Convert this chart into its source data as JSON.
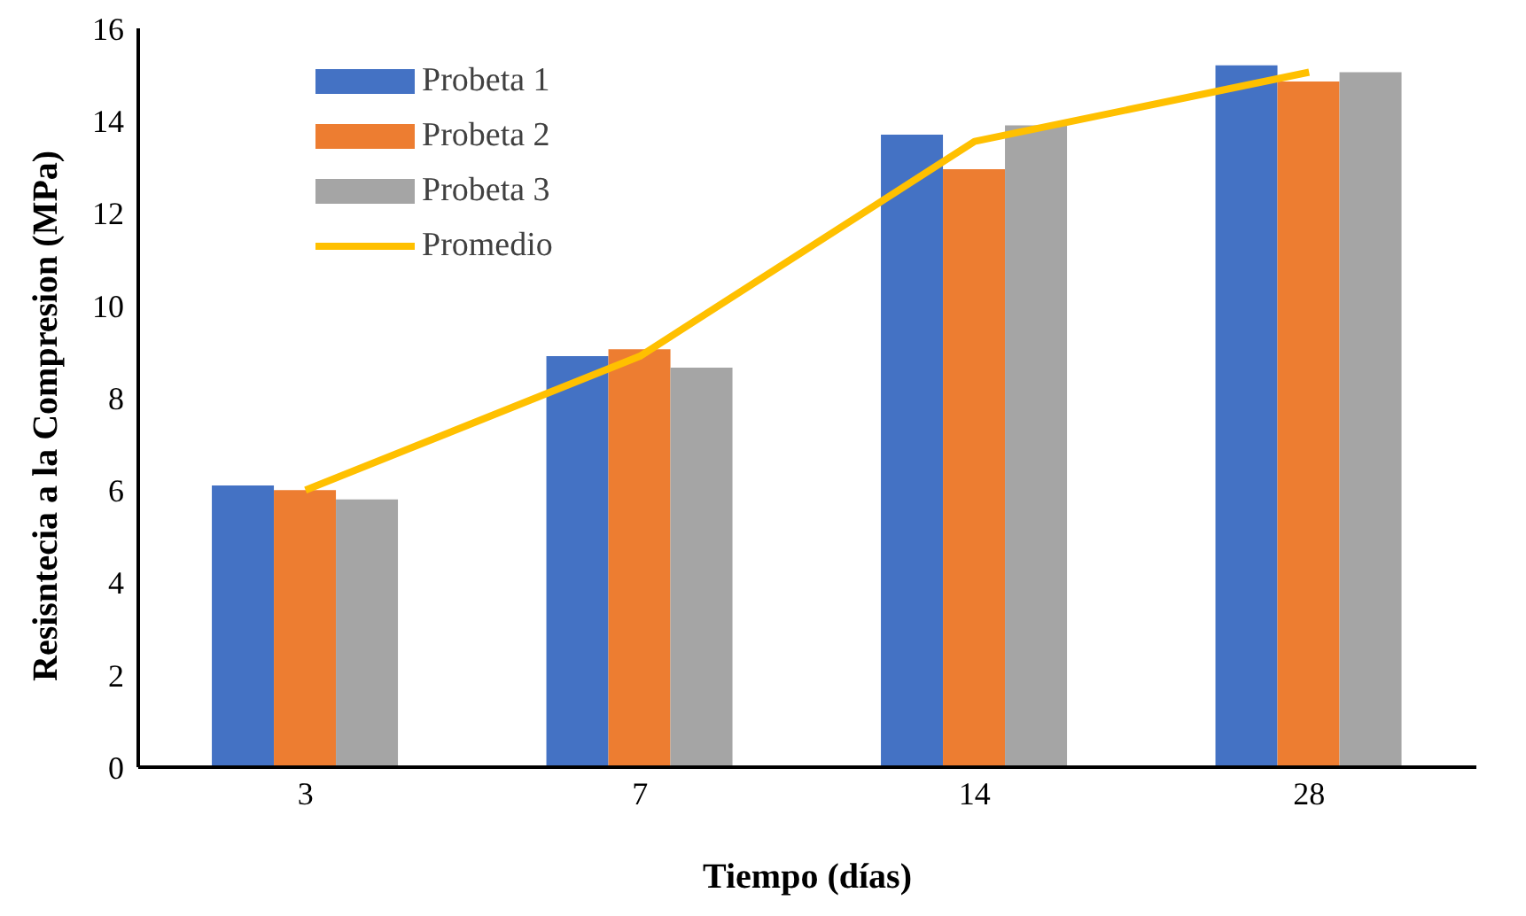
{
  "chart_data": {
    "type": "bar",
    "xlabel": "Tiempo (días)",
    "ylabel": "Resisntecia a la Compresion (MPa)",
    "categories": [
      "3",
      "7",
      "14",
      "28"
    ],
    "series": [
      {
        "name": "Probeta 1",
        "color": "#4472c4",
        "values": [
          6.1,
          8.9,
          13.7,
          15.2
        ]
      },
      {
        "name": "Probeta 2",
        "color": "#ed7d31",
        "values": [
          6.0,
          9.05,
          12.95,
          14.85
        ]
      },
      {
        "name": "Probeta 3",
        "color": "#a5a5a5",
        "values": [
          5.8,
          8.65,
          13.9,
          15.05
        ]
      },
      {
        "name": "Promedio",
        "color": "#ffc000",
        "type": "line",
        "values": [
          6.0,
          8.9,
          13.55,
          15.05
        ]
      }
    ],
    "ylim": [
      0,
      16
    ],
    "yticks": [
      0,
      2,
      4,
      6,
      8,
      10,
      12,
      14,
      16
    ],
    "grid": false,
    "legend": "top left",
    "marker": "none",
    "line_style": "solid"
  }
}
